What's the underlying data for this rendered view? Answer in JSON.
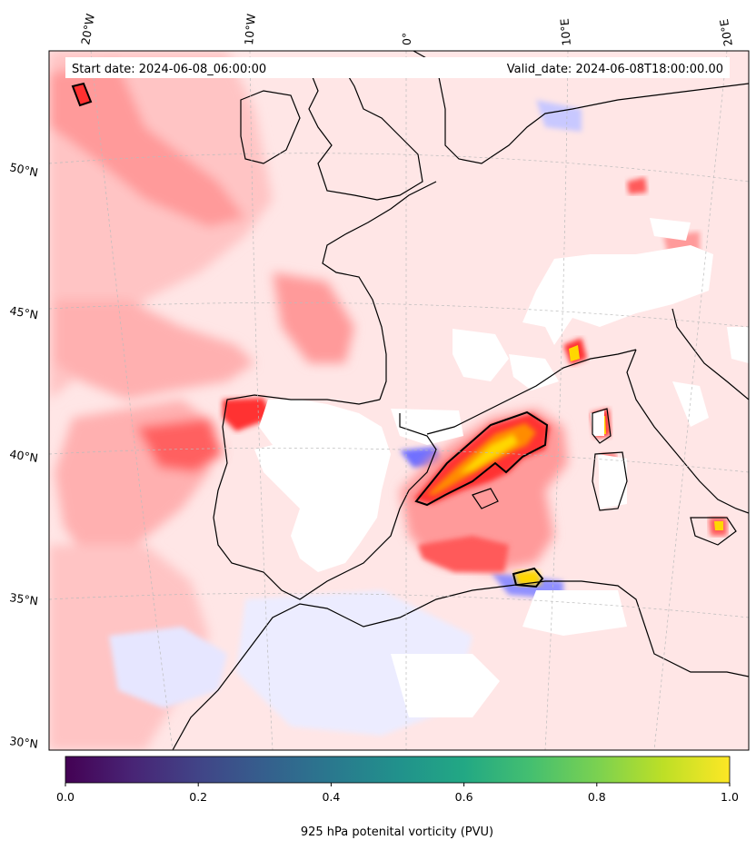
{
  "header": {
    "start_date": "Start date: 2024-06-08_06:00:00",
    "valid_date": "Valid_date: 2024-06-08T18:00:00.00"
  },
  "longitude_labels": [
    "20°W",
    "10°W",
    "0°",
    "10°E",
    "20°E"
  ],
  "latitude_labels": [
    "50°N",
    "45°N",
    "40°N",
    "35°N",
    "30°N"
  ],
  "colorbar": {
    "label": "925 hPa potenital vorticity (PVU)",
    "colormap": "viridis",
    "ticks": [
      "0.0",
      "0.2",
      "0.4",
      "0.6",
      "0.8",
      "1.0"
    ],
    "range": [
      0.0,
      1.0
    ]
  },
  "colors": {
    "field_background": "#ffe6e6",
    "light_red": "#ffc4c4",
    "mid_red": "#ff8c8c",
    "strong_red": "#ff4d4d",
    "deep_red": "#e60000",
    "orange": "#ff8c00",
    "yellow": "#ffd700",
    "negative_blue": "#c8c8ff",
    "coastline": "#000000",
    "gridline": "#bbbbbb"
  }
}
